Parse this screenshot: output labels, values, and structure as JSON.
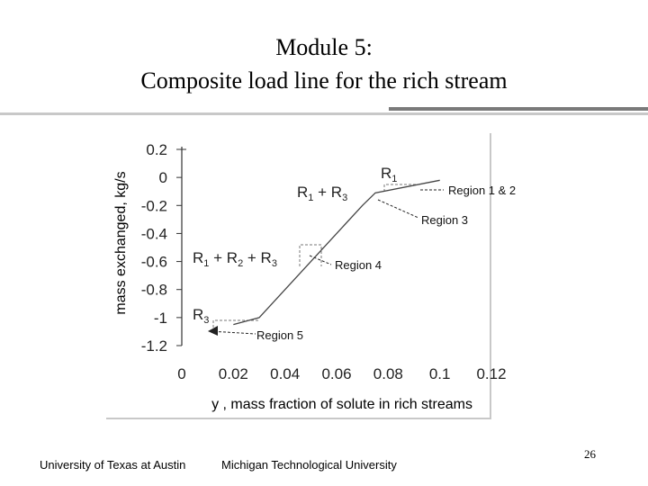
{
  "slide": {
    "title_line1": "Module 5:",
    "title_line2": "Composite load line for the rich stream",
    "footer_left": "University of Texas at Austin",
    "footer_center": "Michigan Technological University",
    "page_number": "26"
  },
  "chart_data": {
    "type": "line",
    "title": "",
    "xlabel": "y , mass fraction of solute in rich streams",
    "ylabel": "mass exchanged, kg/s",
    "xlim": [
      0,
      0.12
    ],
    "ylim": [
      -1.2,
      0.2
    ],
    "x_ticks": [
      "0",
      "0.02",
      "0.04",
      "0.06",
      "0.08",
      "0.1",
      "0.12"
    ],
    "y_ticks": [
      "0.2",
      "0",
      "-0.2",
      "-0.4",
      "-0.6",
      "-0.8",
      "-1",
      "-1.2"
    ],
    "series": [
      {
        "x": [
          0.02,
          0.03,
          0.07,
          0.075,
          0.1
        ],
        "y": [
          -1.05,
          -1.0,
          -0.2,
          -0.11,
          -0.02
        ]
      }
    ],
    "segment_labels": [
      {
        "text": "R1",
        "base": "R",
        "sub": "1",
        "region": "Region 1 & 2"
      },
      {
        "text": "R1 + R3",
        "base": "R",
        "sub": "1",
        "mid": " + R",
        "sub2": "3",
        "region": "Region 3"
      },
      {
        "text": "R1 + R2 + R3",
        "region": "Region 4"
      },
      {
        "text": "R3",
        "base": "R",
        "sub": "3",
        "region": "Region 5"
      }
    ],
    "annotations": [
      "Region 1 & 2",
      "Region 3",
      "Region 4",
      "Region 5"
    ]
  }
}
